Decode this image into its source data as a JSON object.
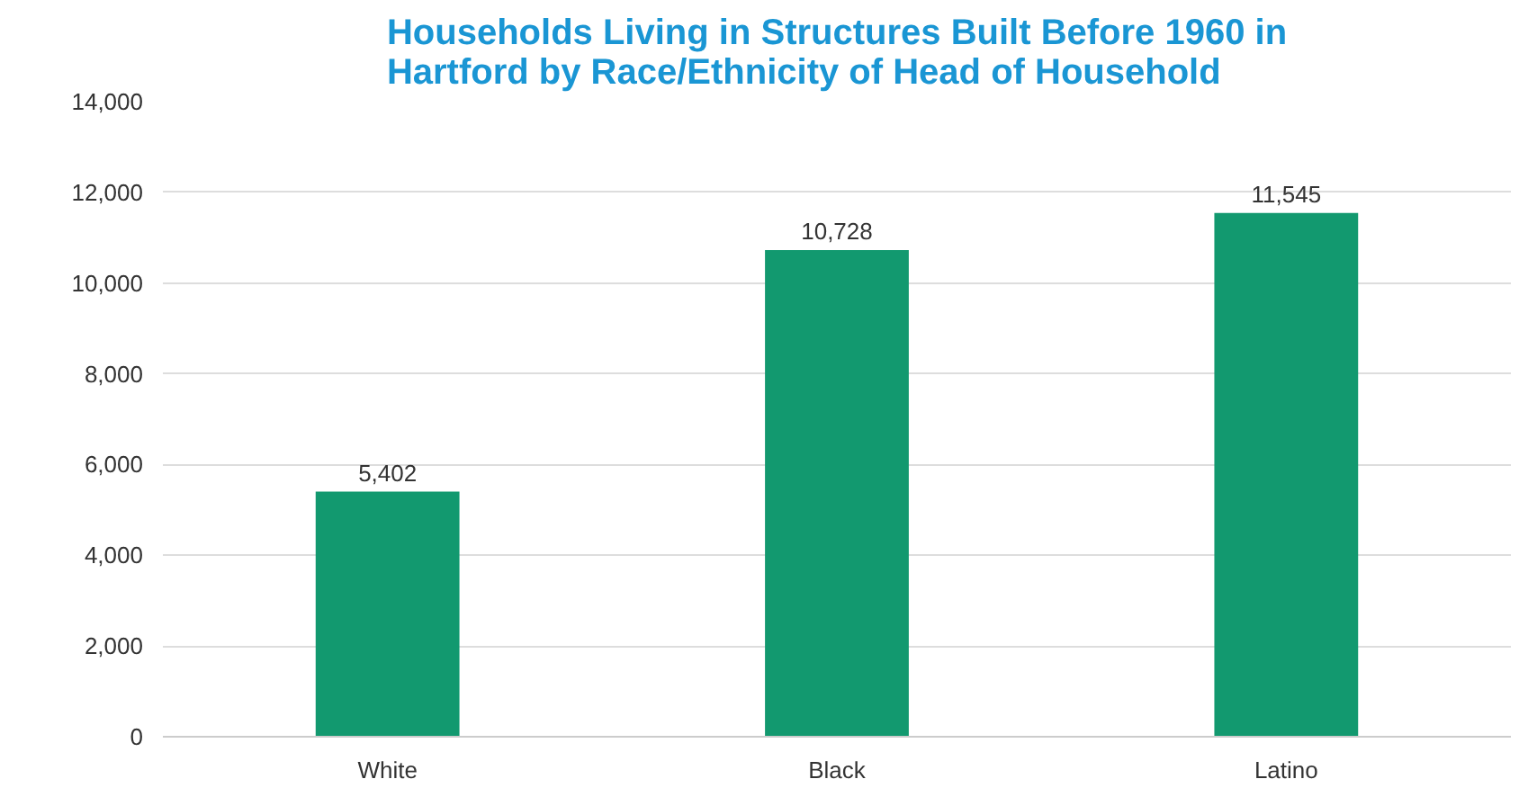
{
  "chart_data": {
    "type": "bar",
    "title": "Households Living in Structures Built Before 1960 in\nHartford by Race/Ethnicity of Head of Household",
    "categories": [
      "White",
      "Black",
      "Latino"
    ],
    "values": [
      5402,
      10728,
      11545
    ],
    "color": "#12996f",
    "ylim": [
      0,
      14000
    ],
    "yticks": [
      {
        "value": 0,
        "label": "0"
      },
      {
        "value": 2000,
        "label": "2,000"
      },
      {
        "value": 4000,
        "label": "4,000"
      },
      {
        "value": 6000,
        "label": "6,000"
      },
      {
        "value": 8000,
        "label": "8,000"
      },
      {
        "value": 10000,
        "label": "10,000"
      },
      {
        "value": 12000,
        "label": "12,000"
      },
      {
        "value": 14000,
        "label": "14,000"
      }
    ],
    "grid": "y",
    "value_labels": [
      "5,402",
      "10,728",
      "11,545"
    ]
  }
}
